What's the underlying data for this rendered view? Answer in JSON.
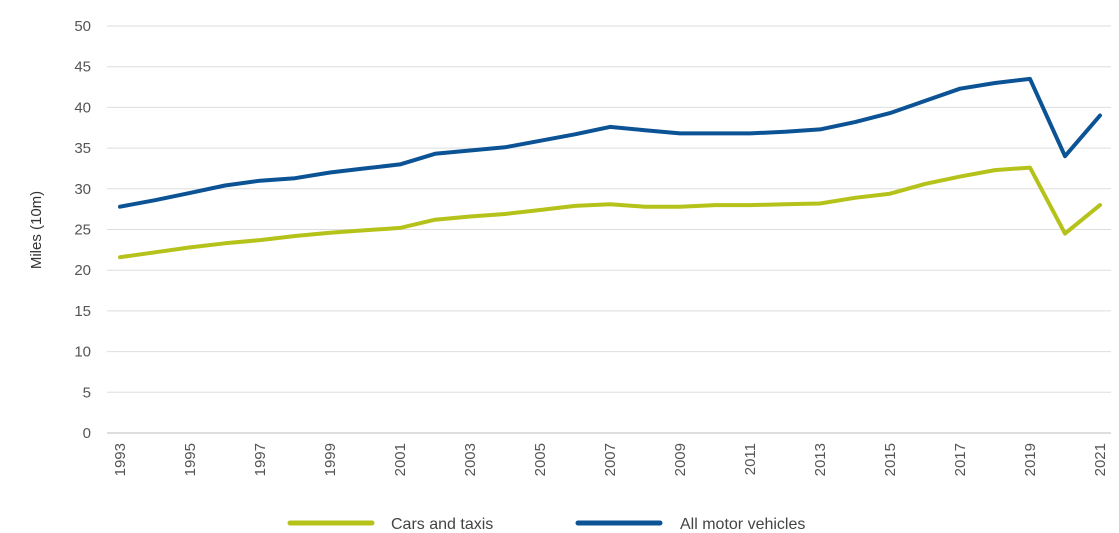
{
  "chart_data": {
    "type": "line",
    "title": "",
    "xlabel": "",
    "ylabel": "Miles (10m)",
    "ylim": [
      0,
      50
    ],
    "yticks": [
      "0",
      "5",
      "10",
      "15",
      "20",
      "25",
      "30",
      "35",
      "40",
      "45",
      "50"
    ],
    "xticks": [
      "1993",
      "1995",
      "1997",
      "1999",
      "2001",
      "2003",
      "2005",
      "2007",
      "2009",
      "2011",
      "2013",
      "2015",
      "2017",
      "2019",
      "2021"
    ],
    "x": [
      1993,
      1994,
      1995,
      1996,
      1997,
      1998,
      1999,
      2000,
      2001,
      2002,
      2003,
      2004,
      2005,
      2006,
      2007,
      2008,
      2009,
      2010,
      2011,
      2012,
      2013,
      2014,
      2015,
      2016,
      2017,
      2018,
      2019,
      2020,
      2021
    ],
    "grid": true,
    "legend_position": "bottom",
    "series": [
      {
        "name": "Cars and taxis",
        "color": "#b5c21a",
        "values": [
          21.6,
          22.2,
          22.8,
          23.3,
          23.7,
          24.2,
          24.6,
          24.9,
          25.2,
          26.2,
          26.6,
          26.9,
          27.4,
          27.9,
          28.1,
          27.8,
          27.8,
          28.0,
          28.0,
          28.1,
          28.2,
          28.9,
          29.4,
          30.6,
          31.5,
          32.3,
          32.6,
          24.5,
          28.0
        ]
      },
      {
        "name": "All motor vehicles",
        "color": "#0b5394",
        "values": [
          27.8,
          28.6,
          29.5,
          30.4,
          31.0,
          31.3,
          32.0,
          32.5,
          33.0,
          34.3,
          34.7,
          35.1,
          35.9,
          36.7,
          37.6,
          37.2,
          36.8,
          36.8,
          36.8,
          37.0,
          37.3,
          38.2,
          39.3,
          40.8,
          42.3,
          43.0,
          43.5,
          34.0,
          39.0
        ]
      }
    ]
  }
}
